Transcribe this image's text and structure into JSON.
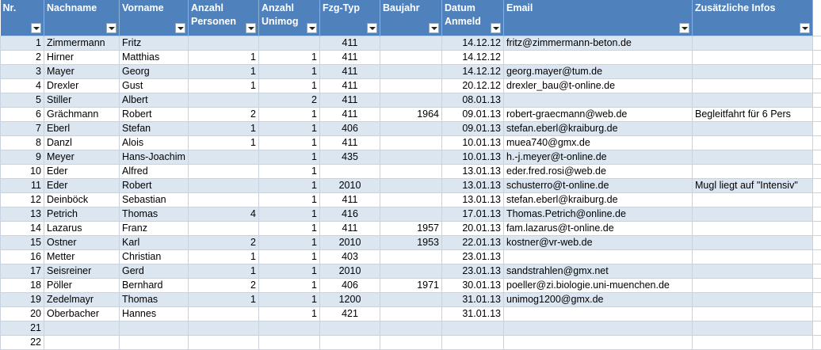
{
  "table": {
    "headers": [
      "Nr.",
      "Nachname",
      "Vorname",
      "Anzahl Personen",
      "Anzahl Unimog",
      "Fzg-Typ",
      "Baujahr",
      "Datum Anmeld",
      "Email",
      "Zusätzliche Infos"
    ],
    "rows": [
      [
        1,
        "Zimmermann",
        "Fritz",
        null,
        null,
        411,
        null,
        "14.12.12",
        "fritz@zimmermann-beton.de",
        null
      ],
      [
        2,
        "Hirner",
        "Matthias",
        1,
        1,
        411,
        null,
        "14.12.12",
        null,
        null
      ],
      [
        3,
        "Mayer",
        "Georg",
        1,
        1,
        411,
        null,
        "14.12.12",
        "georg.mayer@tum.de",
        null
      ],
      [
        4,
        "Drexler",
        "Gust",
        1,
        1,
        411,
        null,
        "20.12.12",
        "drexler_bau@t-online.de",
        null
      ],
      [
        5,
        "Stiller",
        "Albert",
        null,
        2,
        411,
        null,
        "08.01.13",
        null,
        null
      ],
      [
        6,
        "Grächmann",
        "Robert",
        2,
        1,
        411,
        1964,
        "09.01.13",
        "robert-graecmann@web.de",
        "Begleitfahrt für 6 Pers"
      ],
      [
        7,
        "Eberl",
        "Stefan",
        1,
        1,
        406,
        null,
        "09.01.13",
        "stefan.eberl@kraiburg.de",
        null
      ],
      [
        8,
        "Danzl",
        "Alois",
        1,
        1,
        411,
        null,
        "10.01.13",
        "muea740@gmx.de",
        null
      ],
      [
        9,
        "Meyer",
        "Hans-Joachim",
        null,
        1,
        435,
        null,
        "10.01.13",
        "h.-j.meyer@t-online.de",
        null
      ],
      [
        10,
        "Eder",
        "Alfred",
        null,
        1,
        null,
        null,
        "13.01.13",
        "eder.fred.rosi@web.de",
        null
      ],
      [
        11,
        "Eder",
        "Robert",
        null,
        1,
        2010,
        null,
        "13.01.13",
        "schusterro@t-online.de",
        "Mugl liegt auf \"Intensiv\""
      ],
      [
        12,
        "Deinböck",
        "Sebastian",
        null,
        1,
        411,
        null,
        "13.01.13",
        "stefan.eberl@kraiburg.de",
        null
      ],
      [
        13,
        "Petrich",
        "Thomas",
        4,
        1,
        416,
        null,
        "17.01.13",
        "Thomas.Petrich@online.de",
        null
      ],
      [
        14,
        "Lazarus",
        "Franz",
        null,
        1,
        411,
        1957,
        "20.01.13",
        "fam.lazarus@t-online.de",
        null
      ],
      [
        15,
        "Ostner",
        "Karl",
        2,
        1,
        2010,
        1953,
        "22.01.13",
        "kostner@vr-web.de",
        null
      ],
      [
        16,
        "Metter",
        "Christian",
        1,
        1,
        403,
        null,
        "23.01.13",
        null,
        null
      ],
      [
        17,
        "Seisreiner",
        "Gerd",
        1,
        1,
        2010,
        null,
        "23.01.13",
        "sandstrahlen@gmx.net",
        null
      ],
      [
        18,
        "Pöller",
        "Bernhard",
        2,
        1,
        406,
        1971,
        "30.01.13",
        "poeller@zi.biologie.uni-muenchen.de",
        null
      ],
      [
        19,
        "Zedelmayr",
        "Thomas",
        1,
        1,
        1200,
        null,
        "31.01.13",
        "unimog1200@gmx.de",
        null
      ],
      [
        20,
        "Oberbacher",
        "Hannes",
        null,
        1,
        421,
        null,
        "31.01.13",
        null,
        null
      ],
      [
        21,
        null,
        null,
        null,
        null,
        null,
        null,
        null,
        null,
        null
      ],
      [
        22,
        null,
        null,
        null,
        null,
        null,
        null,
        null,
        null,
        null
      ]
    ]
  }
}
